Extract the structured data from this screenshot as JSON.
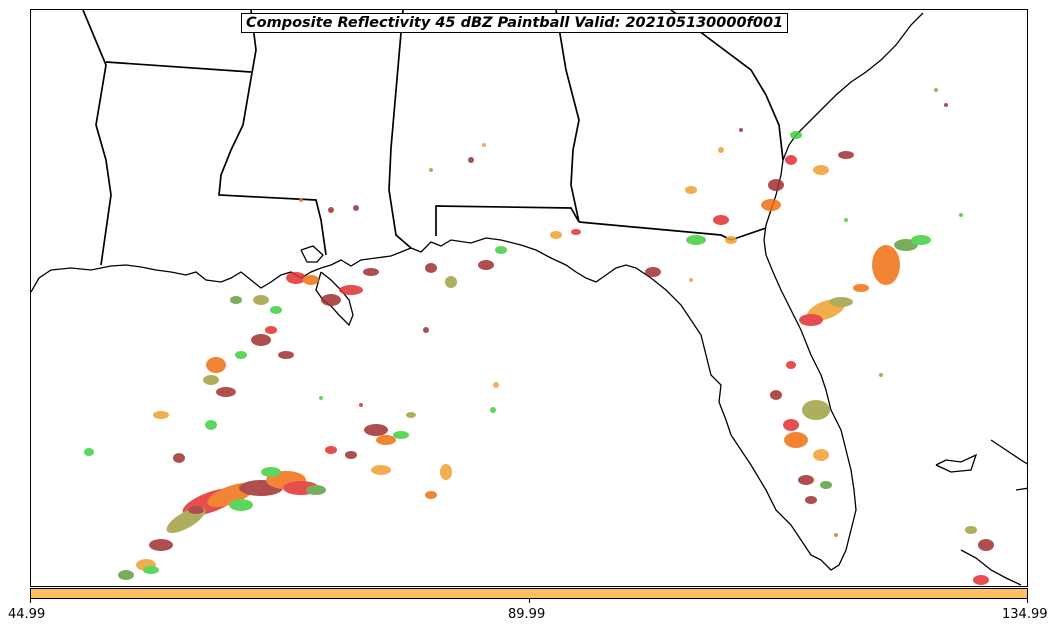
{
  "map": {
    "title": "Composite Reflectivity 45 dBZ Paintball Valid: 202105130000f001",
    "projection": "Lambert-like regional view: US Gulf Coast & Florida",
    "features": [
      "coastline",
      "state-borders"
    ],
    "paintball_colors": [
      "#e03030",
      "#f07010",
      "#f0a030",
      "#a0a040",
      "#40d040",
      "#a03030",
      "#60a040"
    ]
  },
  "colorbar": {
    "fill_color": "#ffc060",
    "ticks": [
      "44.99",
      "89.99",
      "134.99"
    ]
  }
}
